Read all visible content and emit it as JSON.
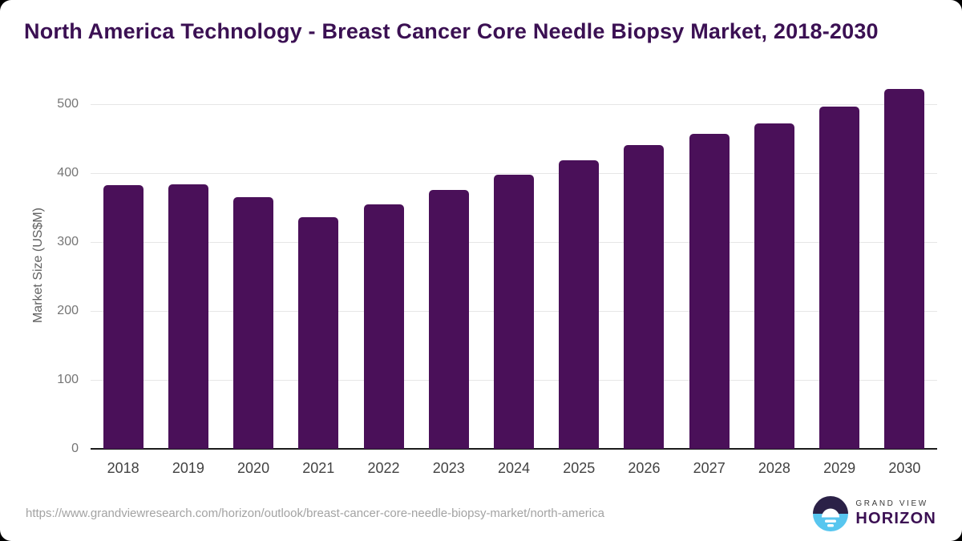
{
  "chart_data": {
    "type": "bar",
    "title": "North America Technology - Breast Cancer Core Needle Biopsy Market, 2018-2030",
    "categories": [
      "2018",
      "2019",
      "2020",
      "2021",
      "2022",
      "2023",
      "2024",
      "2025",
      "2026",
      "2027",
      "2028",
      "2029",
      "2030"
    ],
    "values": [
      382,
      384,
      365,
      336,
      355,
      376,
      397,
      419,
      441,
      457,
      472,
      496,
      522
    ],
    "xlabel": "",
    "ylabel": "Market Size (US$M)",
    "ylim": [
      0,
      530
    ],
    "yticks": [
      0,
      100,
      200,
      300,
      400,
      500
    ],
    "grid": "horizontal-only",
    "legend": "none",
    "bar_color": "#4a1059",
    "title_color": "#3b1053"
  },
  "footer": {
    "source_url": "https://www.grandviewresearch.com/horizon/outlook/breast-cancer-core-needle-biopsy-market/north-america",
    "logo": {
      "brand_top": "GRAND VIEW",
      "brand_bottom": "HORIZON",
      "mark_top_color": "#2b2147",
      "mark_bottom_color": "#58c6ef"
    }
  }
}
